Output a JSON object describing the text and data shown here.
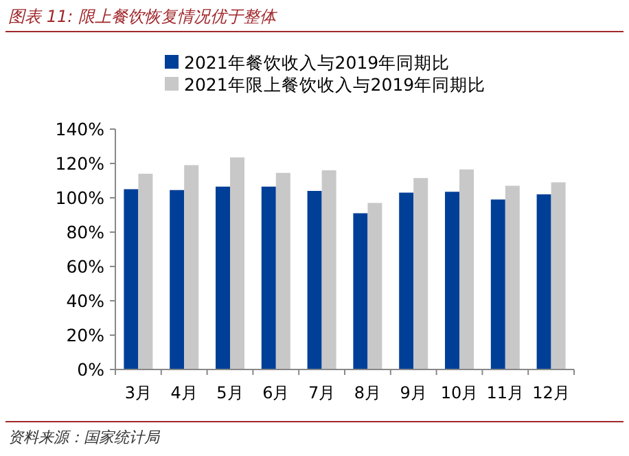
{
  "chart_data": {
    "type": "bar",
    "title": "图表 11: 限上餐饮恢复情况优于整体",
    "categories": [
      "3月",
      "4月",
      "5月",
      "6月",
      "7月",
      "8月",
      "9月",
      "10月",
      "11月",
      "12月"
    ],
    "series": [
      {
        "name": "2021年餐饮收入与2019年同期比",
        "color": "#003f98",
        "values": [
          105,
          104.5,
          106.5,
          106.5,
          104,
          91,
          103,
          103.5,
          99,
          102
        ]
      },
      {
        "name": "2021年限上餐饮收入与2019年同期比",
        "color": "#c8c8c8",
        "values": [
          114,
          119,
          123.5,
          114.5,
          116,
          97,
          111.5,
          116.5,
          107,
          109
        ]
      }
    ],
    "ylim": [
      0,
      140
    ],
    "yticks": [
      {
        "value": 0,
        "label": "0%"
      },
      {
        "value": 20,
        "label": "20%"
      },
      {
        "value": 40,
        "label": "40%"
      },
      {
        "value": 60,
        "label": "60%"
      },
      {
        "value": 80,
        "label": "80%"
      },
      {
        "value": 100,
        "label": "100%"
      },
      {
        "value": 120,
        "label": "120%"
      },
      {
        "value": 140,
        "label": "140%"
      }
    ],
    "legend": "top",
    "grid": false,
    "annotations": [
      "资料来源：国家统计局"
    ]
  }
}
